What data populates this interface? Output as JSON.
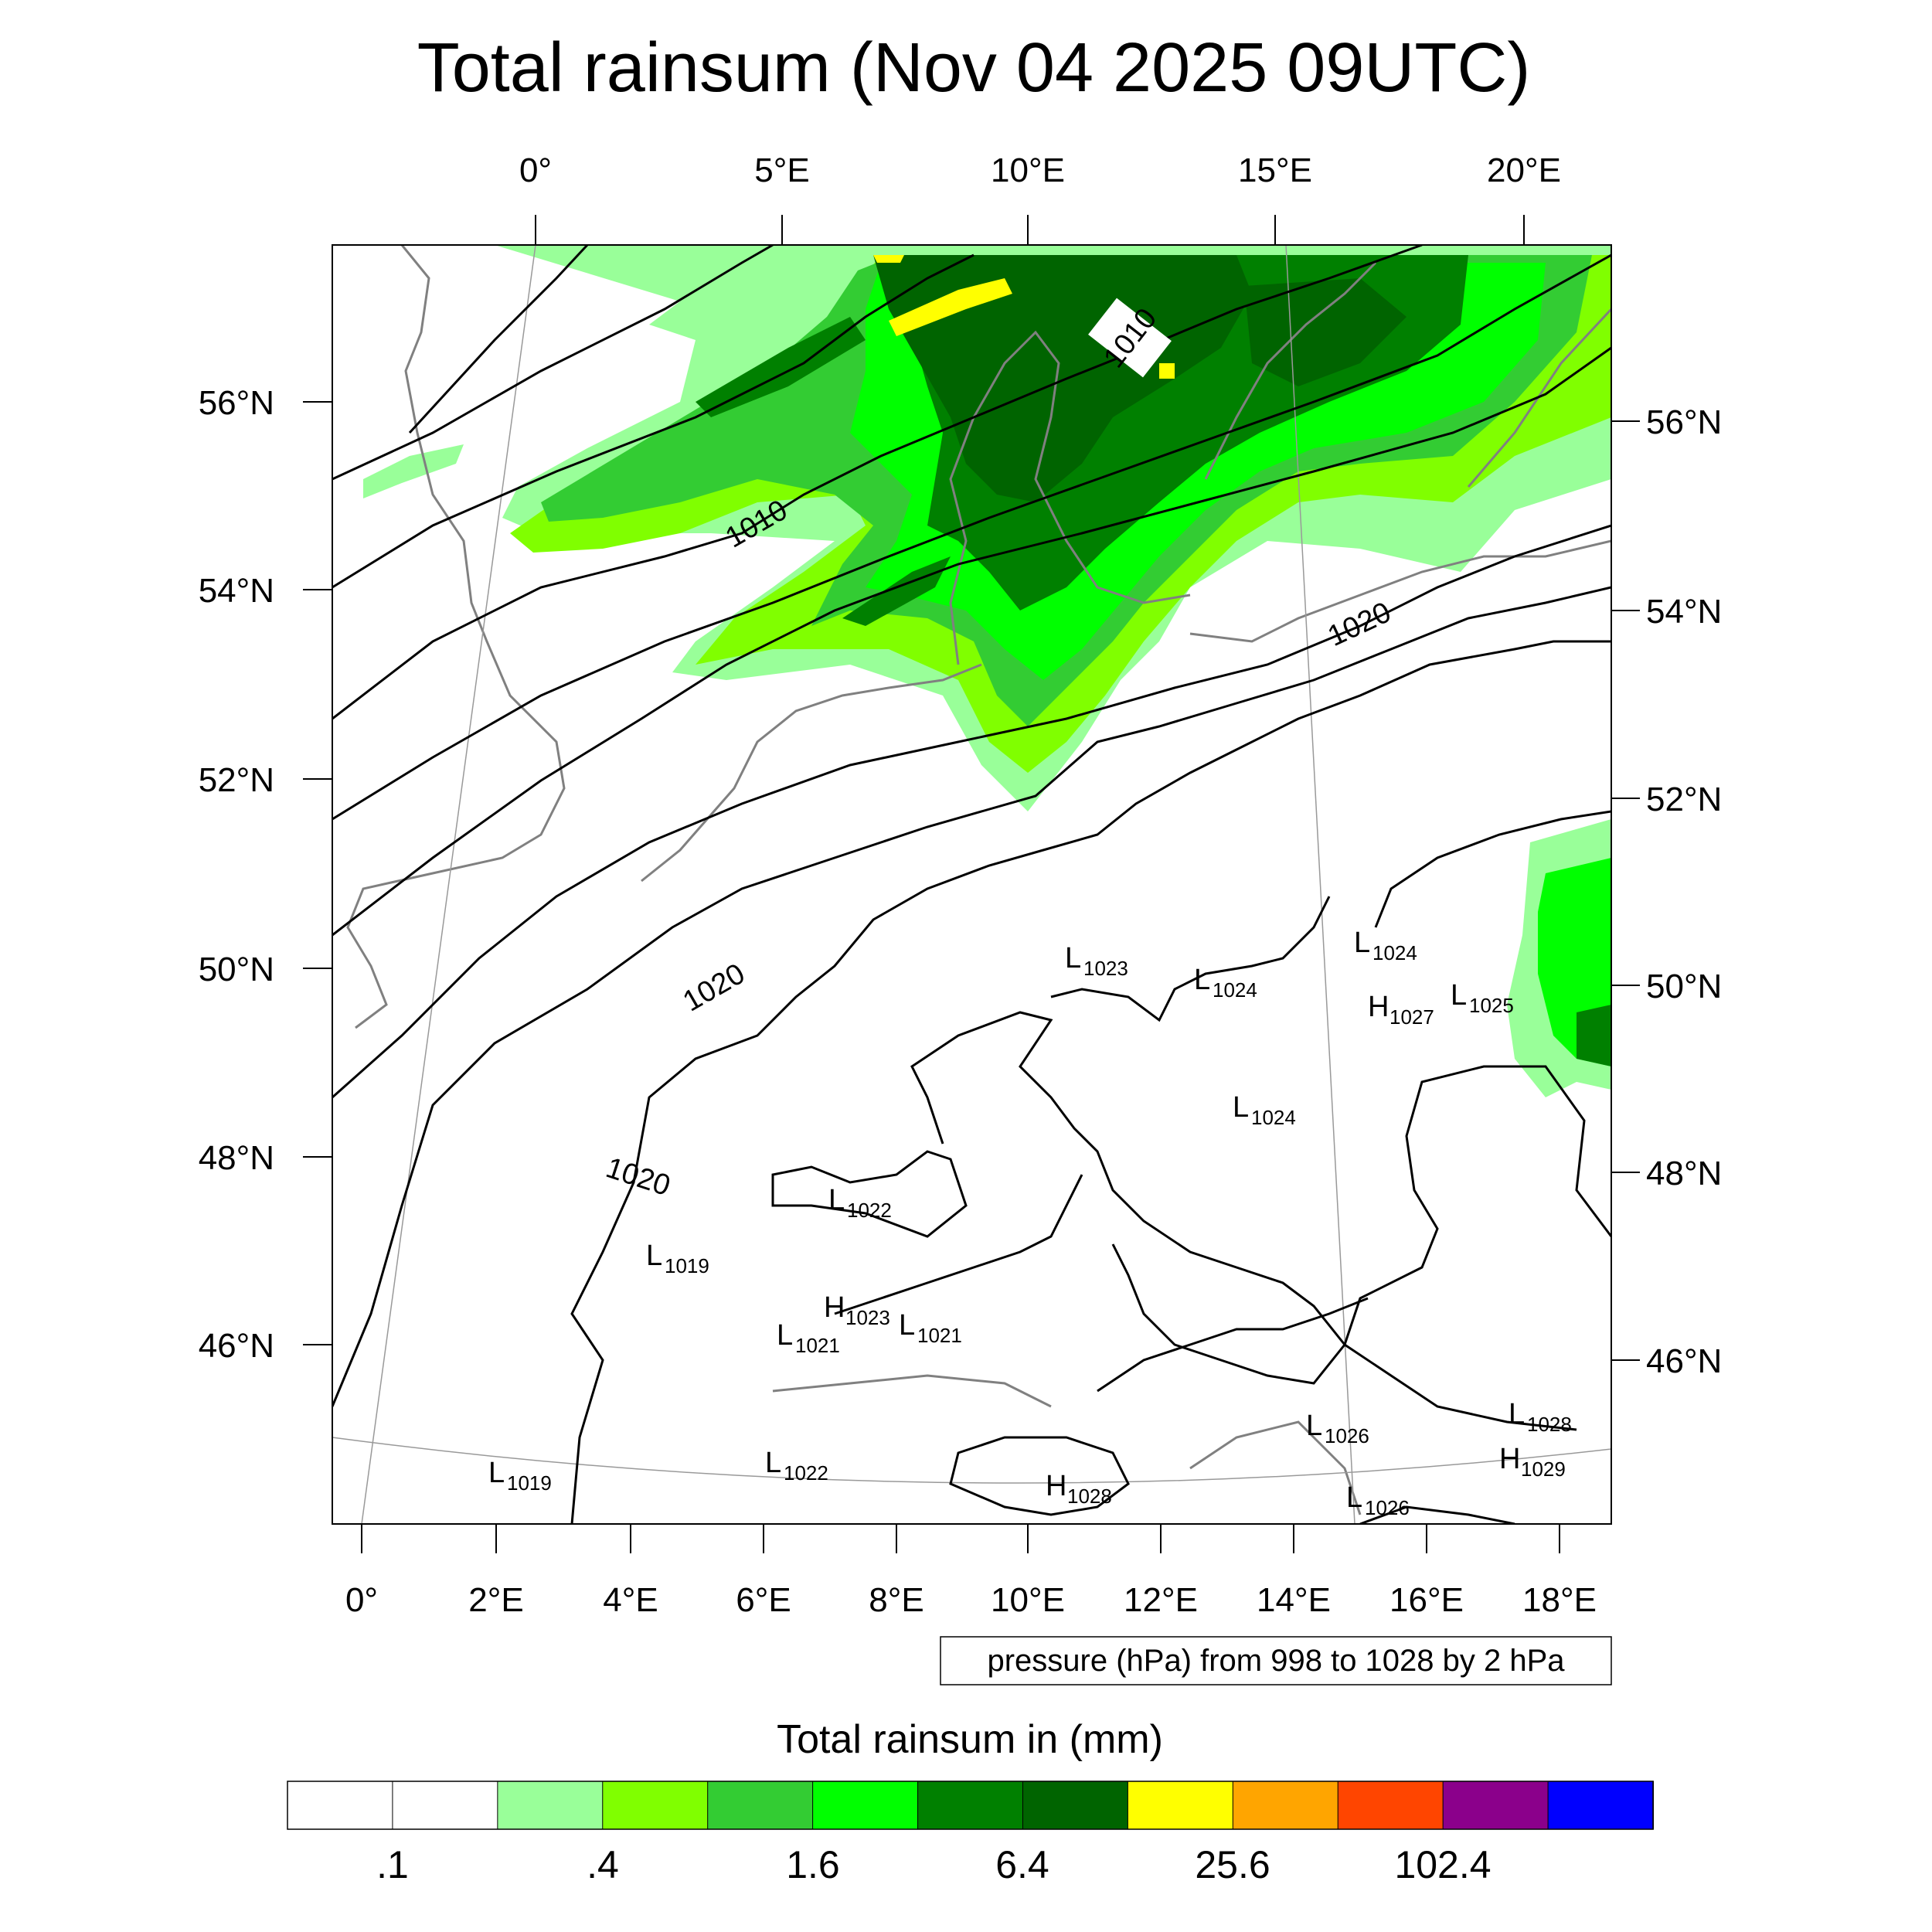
{
  "title": "Total rainsum (Nov 04 2025 09UTC)",
  "top_lon_labels": [
    "0°",
    "5°E",
    "10°E",
    "15°E",
    "20°E"
  ],
  "bottom_lon_labels": [
    "0°",
    "2°E",
    "4°E",
    "6°E",
    "8°E",
    "10°E",
    "12°E",
    "14°E",
    "16°E",
    "18°E"
  ],
  "left_lat_labels": [
    "56°N",
    "54°N",
    "52°N",
    "50°N",
    "48°N",
    "46°N"
  ],
  "right_lat_labels": [
    "56°N",
    "54°N",
    "52°N",
    "50°N",
    "48°N",
    "46°N"
  ],
  "isobar_labels": [
    "1010",
    "1010",
    "1020",
    "1020",
    "1020"
  ],
  "pressure_centers": [
    {
      "type": "L",
      "value": "1023"
    },
    {
      "type": "L",
      "value": "1024"
    },
    {
      "type": "L",
      "value": "1024"
    },
    {
      "type": "H",
      "value": "1027"
    },
    {
      "type": "L",
      "value": "1025"
    },
    {
      "type": "L",
      "value": "1024"
    },
    {
      "type": "L",
      "value": "1022"
    },
    {
      "type": "L",
      "value": "1019"
    },
    {
      "type": "H",
      "value": "1023"
    },
    {
      "type": "L",
      "value": "1021"
    },
    {
      "type": "L",
      "value": "1021"
    },
    {
      "type": "L",
      "value": "1022"
    },
    {
      "type": "L",
      "value": "1019"
    },
    {
      "type": "H",
      "value": "1028"
    },
    {
      "type": "L",
      "value": "1026"
    },
    {
      "type": "L",
      "value": "1026"
    },
    {
      "type": "L",
      "value": "1028"
    },
    {
      "type": "H",
      "value": "1029"
    }
  ],
  "contour_info": "pressure (hPa) from 998 to 1028 by 2 hPa",
  "colorbar": {
    "title": "Total rainsum in (mm)",
    "colors": [
      "#ffffff",
      "#ffffff",
      "#99ff99",
      "#80ff00",
      "#33cc33",
      "#00ff00",
      "#008000",
      "#006400",
      "#ffff00",
      "#ffa500",
      "#ff4500",
      "#8b008b",
      "#0000ff"
    ],
    "labels": [
      ".1",
      ".4",
      "1.6",
      "6.4",
      "25.6",
      "102.4"
    ]
  }
}
